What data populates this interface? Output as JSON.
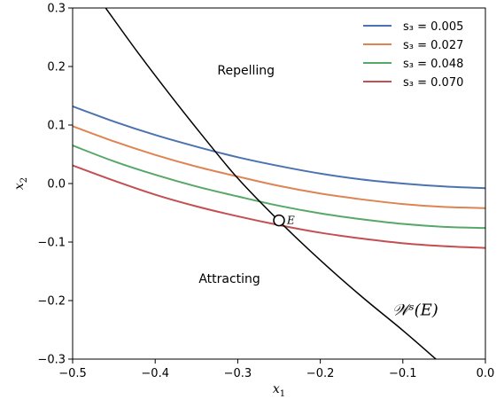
{
  "chart_data": {
    "type": "line",
    "title": "",
    "xlabel": "x",
    "xlabel_sub": "1",
    "ylabel": "x",
    "ylabel_sub": "2",
    "xlim": [
      -0.5,
      0.0
    ],
    "ylim": [
      -0.3,
      0.3
    ],
    "xticks": [
      -0.5,
      -0.4,
      -0.3,
      -0.2,
      -0.1,
      0.0
    ],
    "xtick_labels": [
      "−0.5",
      "−0.4",
      "−0.3",
      "−0.2",
      "−0.1",
      "0.0"
    ],
    "yticks": [
      -0.3,
      -0.2,
      -0.1,
      0.0,
      0.1,
      0.2,
      0.3
    ],
    "ytick_labels": [
      "−0.3",
      "−0.2",
      "−0.1",
      "0.0",
      "0.1",
      "0.2",
      "0.3"
    ],
    "grid": false,
    "legend_position": "top-right",
    "series": [
      {
        "name": "s₃ = 0.005",
        "color": "#4c72b0",
        "x": [
          -0.5,
          -0.45,
          -0.4,
          -0.35,
          -0.3,
          -0.25,
          -0.2,
          -0.15,
          -0.1,
          -0.05,
          0.0
        ],
        "y": [
          0.132,
          0.106,
          0.083,
          0.063,
          0.045,
          0.03,
          0.017,
          0.007,
          0.0,
          -0.005,
          -0.008
        ]
      },
      {
        "name": "s₃ = 0.027",
        "color": "#dd8452",
        "x": [
          -0.5,
          -0.45,
          -0.4,
          -0.35,
          -0.3,
          -0.25,
          -0.2,
          -0.15,
          -0.1,
          -0.05,
          0.0
        ],
        "y": [
          0.098,
          0.072,
          0.049,
          0.029,
          0.012,
          -0.004,
          -0.017,
          -0.027,
          -0.035,
          -0.04,
          -0.042
        ]
      },
      {
        "name": "s₃ = 0.048",
        "color": "#55a868",
        "x": [
          -0.5,
          -0.45,
          -0.4,
          -0.35,
          -0.3,
          -0.25,
          -0.2,
          -0.15,
          -0.1,
          -0.05,
          0.0
        ],
        "y": [
          0.065,
          0.038,
          0.015,
          -0.005,
          -0.022,
          -0.038,
          -0.051,
          -0.061,
          -0.069,
          -0.074,
          -0.076
        ]
      },
      {
        "name": "s₃ = 0.070",
        "color": "#c44e52",
        "x": [
          -0.5,
          -0.45,
          -0.4,
          -0.35,
          -0.3,
          -0.25,
          -0.2,
          -0.15,
          -0.1,
          -0.05,
          0.0
        ],
        "y": [
          0.031,
          0.005,
          -0.019,
          -0.039,
          -0.056,
          -0.071,
          -0.084,
          -0.094,
          -0.102,
          -0.107,
          -0.11
        ]
      }
    ],
    "manifold": {
      "color": "#000000",
      "x": [
        -0.46,
        -0.42,
        -0.38,
        -0.34,
        -0.3,
        -0.25,
        -0.2,
        -0.15,
        -0.1,
        -0.06
      ],
      "y": [
        0.3,
        0.222,
        0.148,
        0.077,
        0.009,
        -0.064,
        -0.131,
        -0.193,
        -0.251,
        -0.3
      ]
    },
    "annotations": {
      "point_E": {
        "x": -0.25,
        "y": -0.063,
        "label": "E"
      },
      "repelling": {
        "x": -0.29,
        "y": 0.186,
        "text": "Repelling"
      },
      "attracting": {
        "x": -0.31,
        "y": -0.17,
        "text": "Attracting"
      },
      "manifold_label": {
        "x": -0.085,
        "y": -0.225,
        "text": "𝒲ˢ(E)"
      }
    }
  }
}
